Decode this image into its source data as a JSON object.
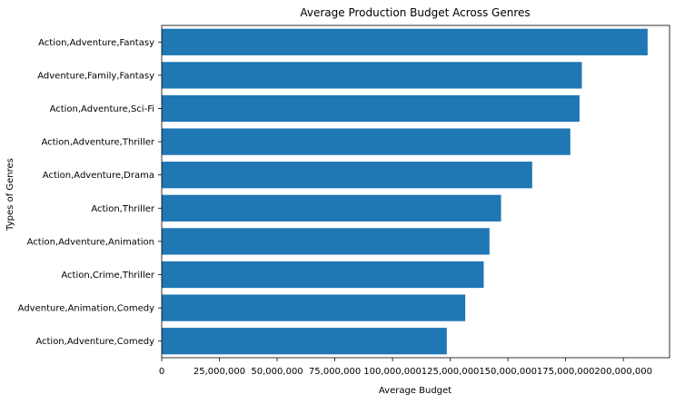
{
  "chart_data": {
    "type": "bar",
    "orientation": "horizontal",
    "title": "Average Production Budget Across Genres",
    "xlabel": "Average Budget",
    "ylabel": "Types of Genres",
    "categories": [
      "Action,Adventure,Comedy",
      "Adventure,Animation,Comedy",
      "Action,Crime,Thriller",
      "Action,Adventure,Animation",
      "Action,Thriller",
      "Action,Adventure,Drama",
      "Action,Adventure,Thriller",
      "Action,Adventure,Sci-Fi",
      "Adventure,Family,Fantasy",
      "Action,Adventure,Fantasy"
    ],
    "values": [
      123500000,
      131500000,
      139500000,
      142000000,
      147000000,
      160500000,
      177000000,
      181000000,
      182000000,
      210500000
    ],
    "xlim": [
      0,
      220000000
    ],
    "xticks": [
      0,
      25000000,
      50000000,
      75000000,
      100000000,
      125000000,
      150000000,
      175000000,
      200000000
    ],
    "xtick_labels": [
      "0",
      "25,000,000",
      "50,000,000",
      "75,000,000",
      "100,000,000",
      "125,000,000",
      "150,000,000",
      "175,000,000",
      "200,000,000"
    ],
    "bar_color": "#1f77b4",
    "grid": false,
    "legend": false
  }
}
